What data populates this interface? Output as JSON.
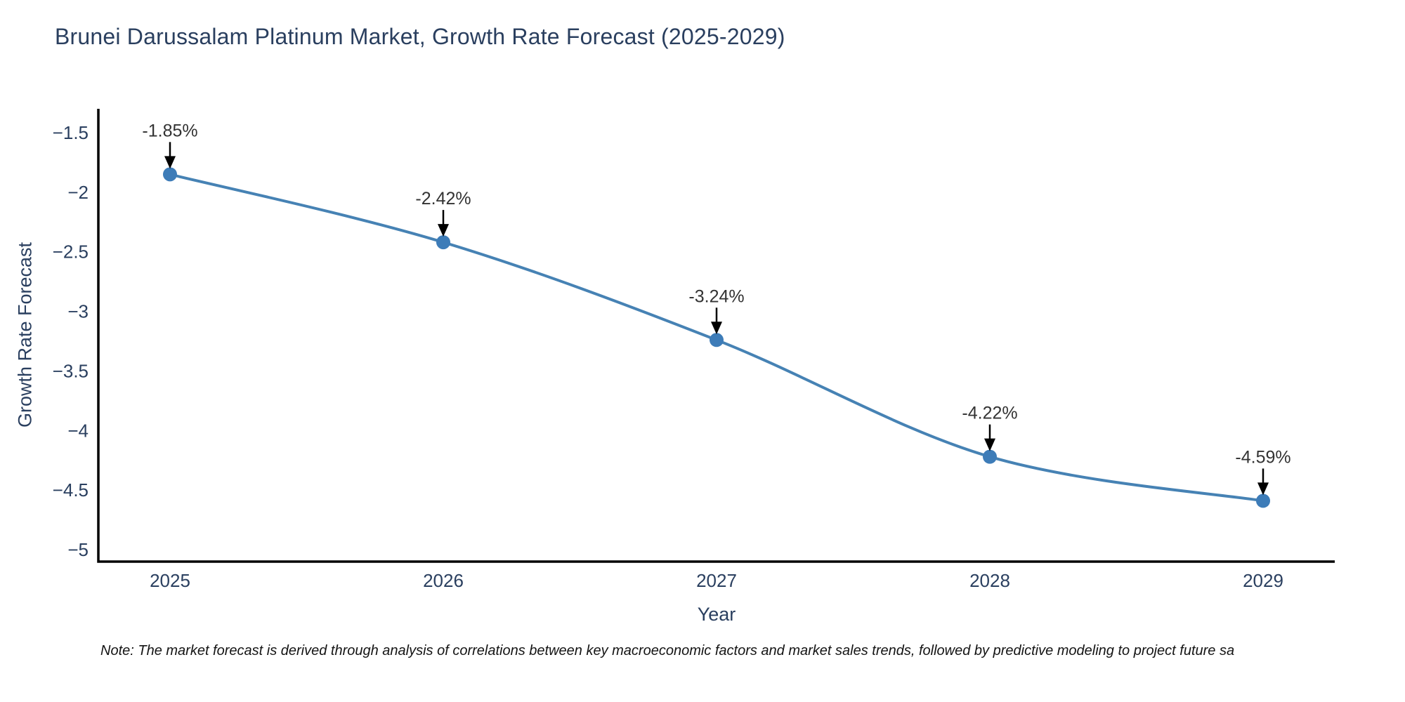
{
  "chart": {
    "note": "Note: The market forecast is derived through analysis of correlations between key macroeconomic factors and market sales trends, followed by predictive modeling to project future sa"
  },
  "chart_data": {
    "type": "line",
    "line_shape": "spline",
    "title": "Brunei Darussalam Platinum Market, Growth Rate Forecast (2025-2029)",
    "xlabel": "Year",
    "ylabel": "Growth Rate Forecast",
    "x": [
      "2025",
      "2026",
      "2027",
      "2028",
      "2029"
    ],
    "y": [
      -1.85,
      -2.42,
      -3.24,
      -4.22,
      -4.59
    ],
    "point_labels": [
      "-1.85%",
      "-2.42%",
      "-3.24%",
      "-4.22%",
      "-4.59%"
    ],
    "ylim": [
      -5.1,
      -1.3
    ],
    "yticks": [
      -1.5,
      -2,
      -2.5,
      -3,
      -3.5,
      -4,
      -4.5,
      -5
    ],
    "ytick_labels": [
      "−1.5",
      "−2",
      "−2.5",
      "−3",
      "−3.5",
      "−4",
      "−4.5",
      "−5"
    ],
    "grid": false,
    "legend": "none",
    "markers": true,
    "annotations_arrow": true,
    "colors": {
      "line": "#4682b4",
      "marker": "#3d7cb8",
      "axis": "#000000",
      "tick_text": "#2a3f5f",
      "annotation_text": "#333333",
      "arrow": "#000000",
      "background": "#ffffff"
    }
  }
}
